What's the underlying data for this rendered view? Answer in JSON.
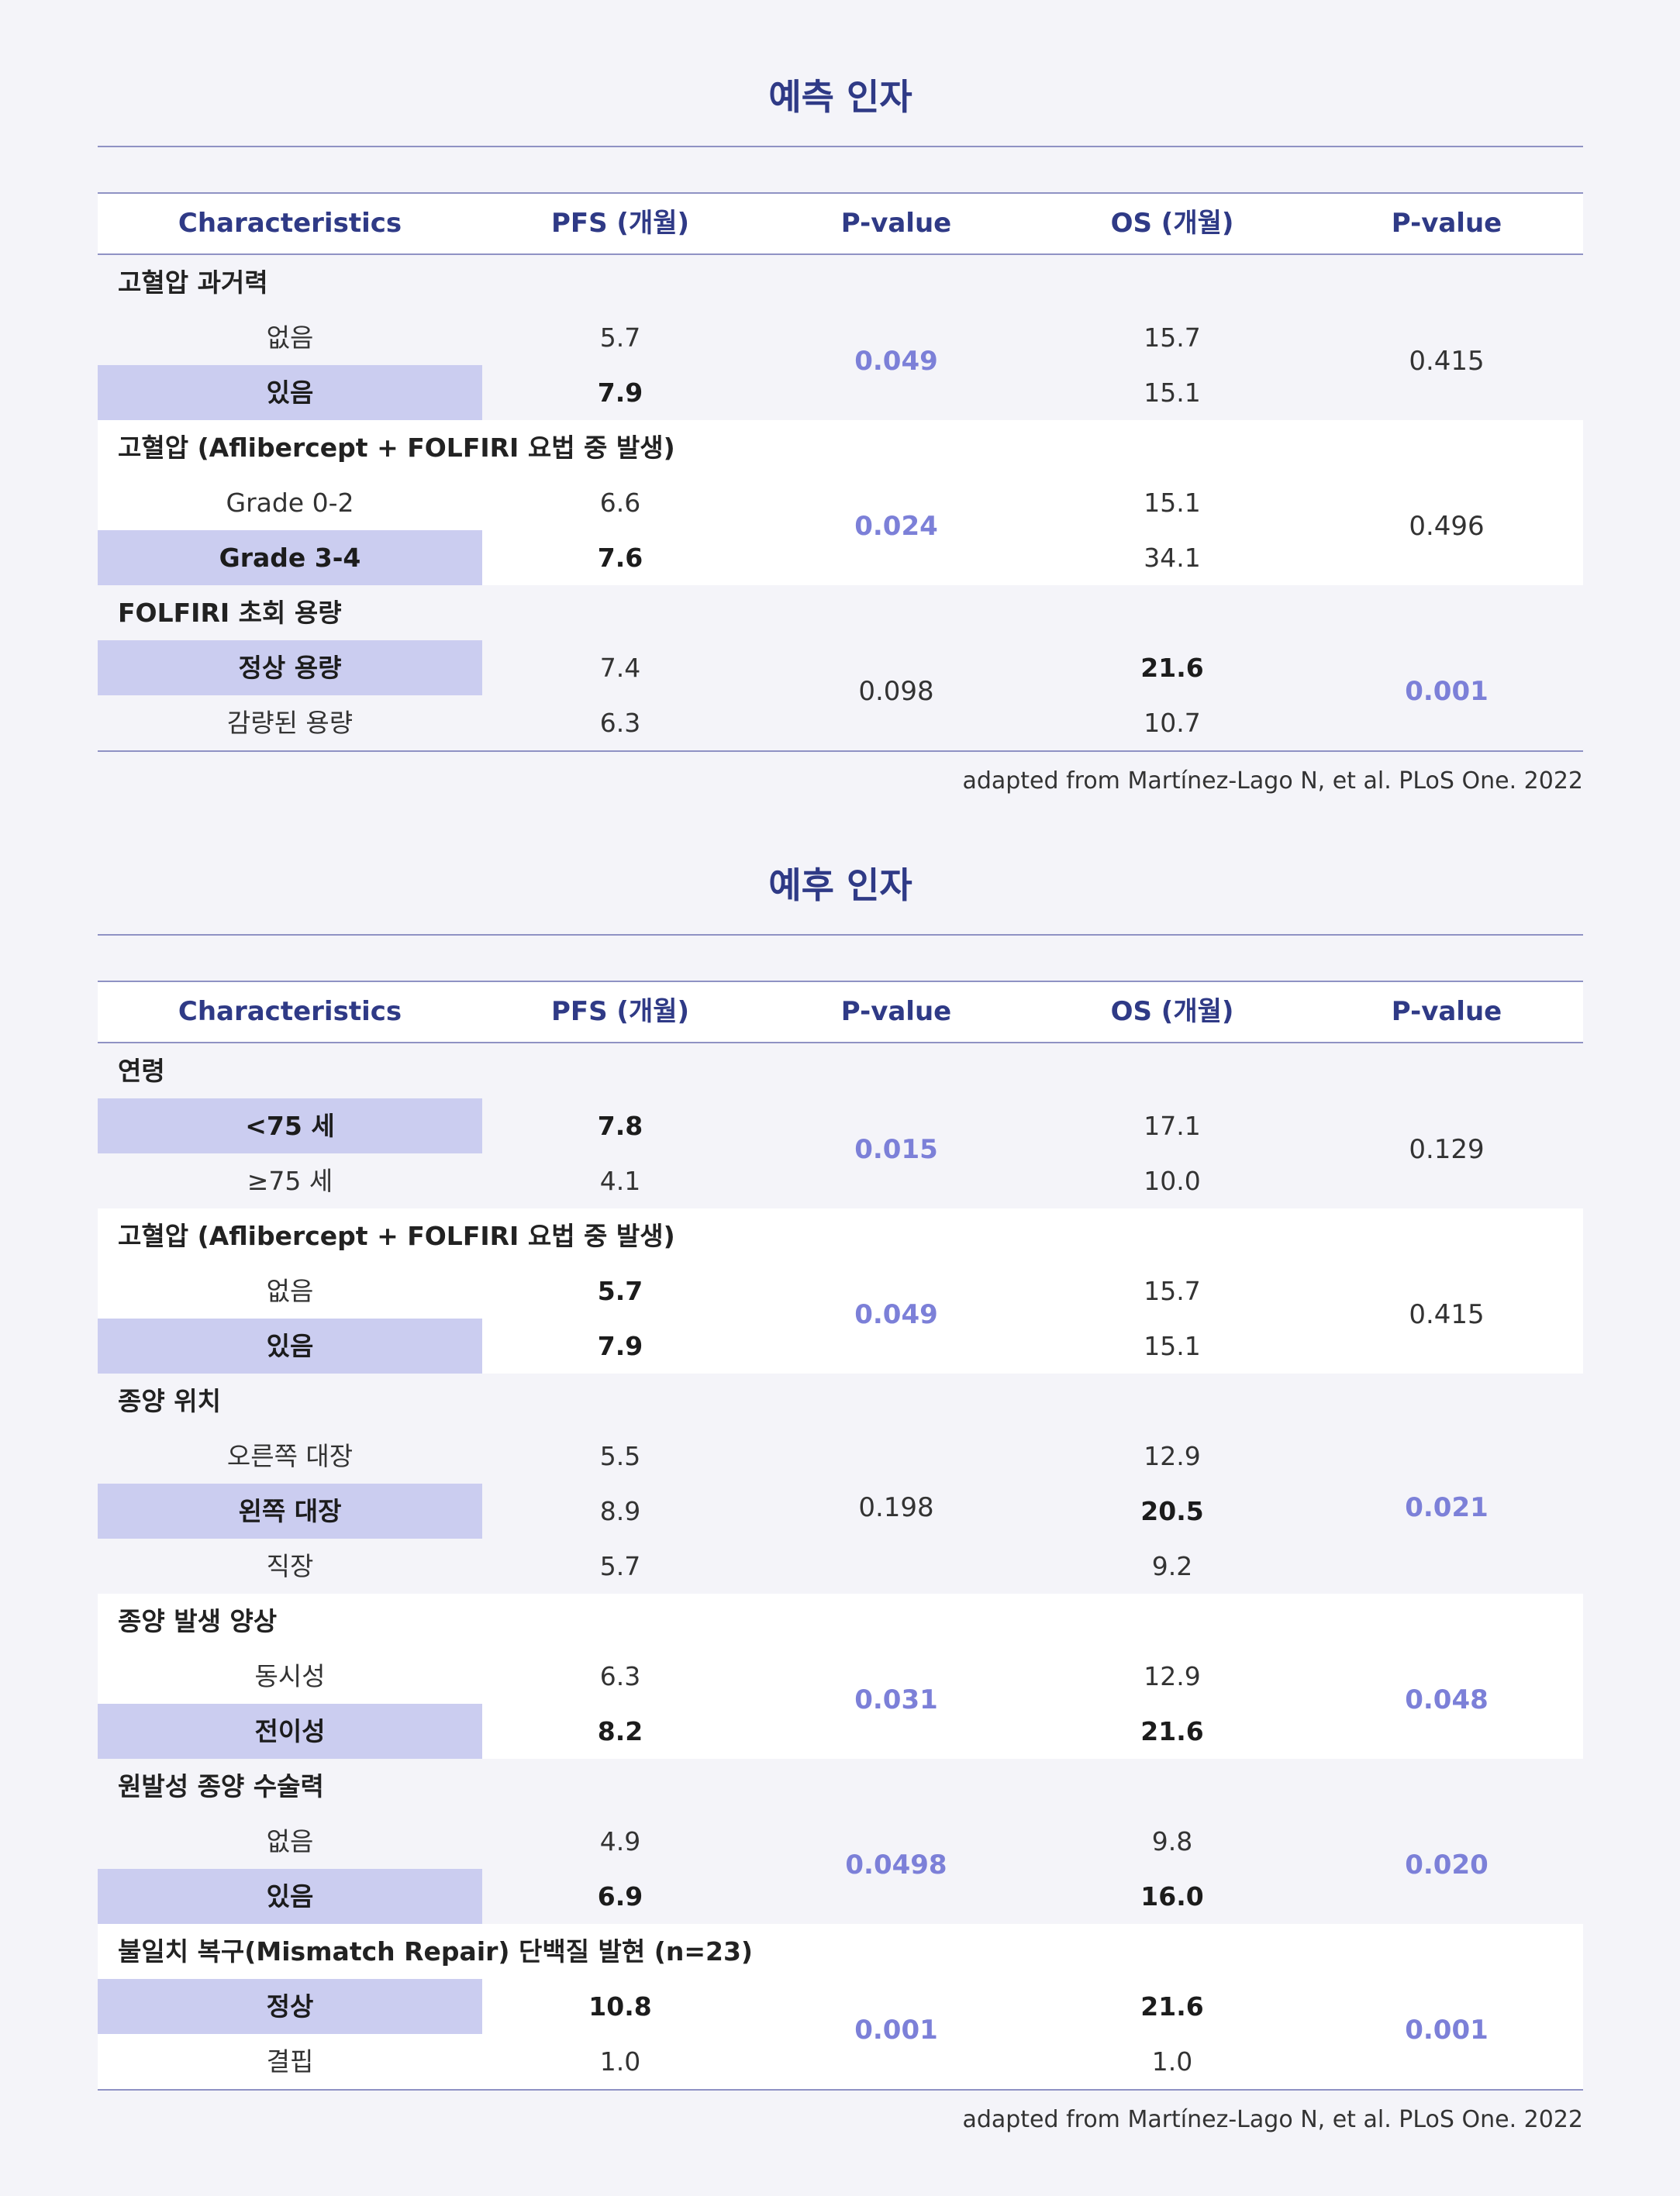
{
  "tables": [
    {
      "title": "예측 인자",
      "headers": [
        "Characteristics",
        "PFS (개월)",
        "P-value",
        "OS (개월)",
        "P-value"
      ],
      "groups": [
        {
          "title": "고혈압 과거력",
          "rows": [
            {
              "label": "없음",
              "pfs": "5.7",
              "os": "15.7",
              "highlight": false,
              "pfs_bold": false,
              "os_bold": false
            },
            {
              "label": "있음",
              "pfs": "7.9",
              "os": "15.1",
              "highlight": true,
              "pfs_bold": true,
              "os_bold": false
            }
          ],
          "pfs_p": "0.049",
          "pfs_sig": true,
          "os_p": "0.415",
          "os_sig": false
        },
        {
          "title": "고혈압 (Aflibercept + FOLFIRI 요법 중 발생)",
          "rows": [
            {
              "label": "Grade 0-2",
              "pfs": "6.6",
              "os": "15.1",
              "highlight": false,
              "pfs_bold": false,
              "os_bold": false
            },
            {
              "label": "Grade 3-4",
              "pfs": "7.6",
              "os": "34.1",
              "highlight": true,
              "pfs_bold": true,
              "os_bold": false
            }
          ],
          "pfs_p": "0.024",
          "pfs_sig": true,
          "os_p": "0.496",
          "os_sig": false
        },
        {
          "title": "FOLFIRI 초회 용량",
          "rows": [
            {
              "label": "정상 용량",
              "pfs": "7.4",
              "os": "21.6",
              "highlight": true,
              "pfs_bold": false,
              "os_bold": true
            },
            {
              "label": "감량된 용량",
              "pfs": "6.3",
              "os": "10.7",
              "highlight": false,
              "pfs_bold": false,
              "os_bold": false
            }
          ],
          "pfs_p": "0.098",
          "pfs_sig": false,
          "os_p": "0.001",
          "os_sig": true
        }
      ],
      "source": "adapted from Martínez-Lago N, et al. PLoS One. 2022"
    },
    {
      "title": "예후 인자",
      "headers": [
        "Characteristics",
        "PFS (개월)",
        "P-value",
        "OS (개월)",
        "P-value"
      ],
      "groups": [
        {
          "title": "연령",
          "rows": [
            {
              "label": "<75 세",
              "pfs": "7.8",
              "os": "17.1",
              "highlight": true,
              "pfs_bold": true,
              "os_bold": false
            },
            {
              "label": "≥75 세",
              "pfs": "4.1",
              "os": "10.0",
              "highlight": false,
              "pfs_bold": false,
              "os_bold": false
            }
          ],
          "pfs_p": "0.015",
          "pfs_sig": true,
          "os_p": "0.129",
          "os_sig": false
        },
        {
          "title": "고혈압 (Aflibercept + FOLFIRI 요법 중 발생)",
          "rows": [
            {
              "label": "없음",
              "pfs": "5.7",
              "os": "15.7",
              "highlight": false,
              "pfs_bold": true,
              "os_bold": false
            },
            {
              "label": "있음",
              "pfs": "7.9",
              "os": "15.1",
              "highlight": true,
              "pfs_bold": true,
              "os_bold": false
            }
          ],
          "pfs_p": "0.049",
          "pfs_sig": true,
          "os_p": "0.415",
          "os_sig": false
        },
        {
          "title": "종양 위치",
          "rows": [
            {
              "label": "오른쪽 대장",
              "pfs": "5.5",
              "os": "12.9",
              "highlight": false,
              "pfs_bold": false,
              "os_bold": false
            },
            {
              "label": "왼쪽 대장",
              "pfs": "8.9",
              "os": "20.5",
              "highlight": true,
              "pfs_bold": false,
              "os_bold": true
            },
            {
              "label": "직장",
              "pfs": "5.7",
              "os": "9.2",
              "highlight": false,
              "pfs_bold": false,
              "os_bold": false
            }
          ],
          "pfs_p": "0.198",
          "pfs_sig": false,
          "os_p": "0.021",
          "os_sig": true
        },
        {
          "title": "종양 발생 양상",
          "rows": [
            {
              "label": "동시성",
              "pfs": "6.3",
              "os": "12.9",
              "highlight": false,
              "pfs_bold": false,
              "os_bold": false
            },
            {
              "label": "전이성",
              "pfs": "8.2",
              "os": "21.6",
              "highlight": true,
              "pfs_bold": true,
              "os_bold": true
            }
          ],
          "pfs_p": "0.031",
          "pfs_sig": true,
          "os_p": "0.048",
          "os_sig": true
        },
        {
          "title": "원발성 종양 수술력",
          "rows": [
            {
              "label": "없음",
              "pfs": "4.9",
              "os": "9.8",
              "highlight": false,
              "pfs_bold": false,
              "os_bold": false
            },
            {
              "label": "있음",
              "pfs": "6.9",
              "os": "16.0",
              "highlight": true,
              "pfs_bold": true,
              "os_bold": true
            }
          ],
          "pfs_p": "0.0498",
          "pfs_sig": true,
          "os_p": "0.020",
          "os_sig": true
        },
        {
          "title": "불일치 복구(Mismatch Repair) 단백질 발현 (n=23)",
          "rows": [
            {
              "label": "정상",
              "pfs": "10.8",
              "os": "21.6",
              "highlight": true,
              "pfs_bold": true,
              "os_bold": true
            },
            {
              "label": "결핍",
              "pfs": "1.0",
              "os": "1.0",
              "highlight": false,
              "pfs_bold": false,
              "os_bold": false
            }
          ],
          "pfs_p": "0.001",
          "pfs_sig": true,
          "os_p": "0.001",
          "os_sig": true
        }
      ],
      "source": "adapted from Martínez-Lago N, et al. PLoS One. 2022"
    }
  ]
}
